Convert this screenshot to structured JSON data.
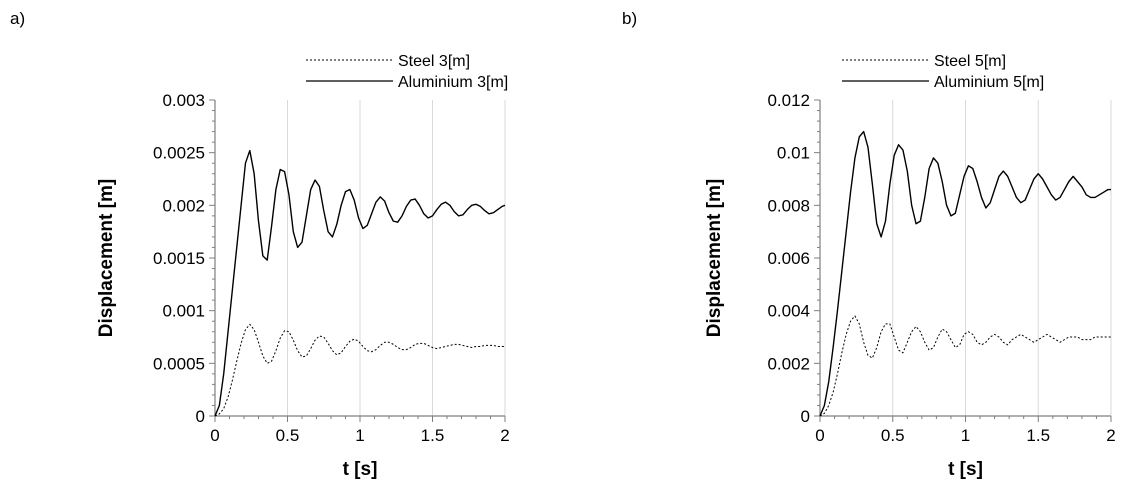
{
  "chart_data": [
    {
      "type": "line",
      "panel_label": "a)",
      "xlabel": "t [s]",
      "ylabel": "Displacement [m]",
      "xlim": [
        0,
        2
      ],
      "ylim": [
        0,
        0.003
      ],
      "xticks": [
        0,
        0.5,
        1,
        1.5,
        2
      ],
      "xtick_labels": [
        "0",
        "0.5",
        "1",
        "1.5",
        "2"
      ],
      "yticks": [
        0,
        0.0005,
        0.001,
        0.0015,
        0.002,
        0.0025,
        0.003
      ],
      "ytick_labels": [
        "0",
        "0.0005",
        "0.001",
        "0.0015",
        "0.002",
        "0.0025",
        "0.003"
      ],
      "grid": "vertical",
      "legend_position": "top-right",
      "series": [
        {
          "name": "Steel 3[m]",
          "style": "dotted",
          "x": [
            0,
            0.03,
            0.06,
            0.09,
            0.12,
            0.15,
            0.18,
            0.21,
            0.24,
            0.27,
            0.3,
            0.33,
            0.36,
            0.39,
            0.42,
            0.45,
            0.48,
            0.51,
            0.54,
            0.57,
            0.6,
            0.63,
            0.66,
            0.69,
            0.72,
            0.75,
            0.78,
            0.81,
            0.84,
            0.87,
            0.9,
            0.93,
            0.96,
            0.99,
            1.02,
            1.05,
            1.08,
            1.11,
            1.14,
            1.17,
            1.2,
            1.23,
            1.26,
            1.29,
            1.32,
            1.35,
            1.38,
            1.41,
            1.44,
            1.47,
            1.5,
            1.53,
            1.56,
            1.59,
            1.62,
            1.65,
            1.68,
            1.71,
            1.74,
            1.77,
            1.8,
            1.83,
            1.86,
            1.89,
            1.92,
            1.95,
            1.98,
            2.0
          ],
          "y": [
            0,
            2e-05,
            7e-05,
            0.00018,
            0.00034,
            0.00052,
            0.00069,
            0.00082,
            0.00087,
            0.00082,
            0.0007,
            0.00057,
            0.0005,
            0.00052,
            0.00062,
            0.00074,
            0.00081,
            0.0008,
            0.00072,
            0.00062,
            0.00056,
            0.00057,
            0.00064,
            0.00072,
            0.00076,
            0.00075,
            0.00069,
            0.00062,
            0.00058,
            0.0006,
            0.00066,
            0.00071,
            0.00073,
            0.00071,
            0.00066,
            0.00062,
            0.00061,
            0.00063,
            0.00067,
            0.0007,
            0.0007,
            0.00068,
            0.00065,
            0.00063,
            0.00063,
            0.00065,
            0.00068,
            0.00069,
            0.00069,
            0.00067,
            0.00065,
            0.00064,
            0.00065,
            0.00066,
            0.00067,
            0.00068,
            0.00068,
            0.00067,
            0.00066,
            0.00065,
            0.00066,
            0.00066,
            0.00067,
            0.00067,
            0.00067,
            0.00066,
            0.00066,
            0.00066
          ]
        },
        {
          "name": "Aluminium 3[m]",
          "style": "solid",
          "x": [
            0,
            0.03,
            0.06,
            0.09,
            0.12,
            0.15,
            0.18,
            0.21,
            0.24,
            0.27,
            0.3,
            0.33,
            0.36,
            0.39,
            0.42,
            0.45,
            0.48,
            0.51,
            0.54,
            0.57,
            0.6,
            0.63,
            0.66,
            0.69,
            0.72,
            0.75,
            0.78,
            0.81,
            0.84,
            0.87,
            0.9,
            0.93,
            0.96,
            0.99,
            1.02,
            1.05,
            1.08,
            1.11,
            1.14,
            1.17,
            1.2,
            1.23,
            1.26,
            1.29,
            1.32,
            1.35,
            1.38,
            1.41,
            1.44,
            1.47,
            1.5,
            1.53,
            1.56,
            1.59,
            1.62,
            1.65,
            1.68,
            1.71,
            1.74,
            1.77,
            1.8,
            1.83,
            1.86,
            1.89,
            1.92,
            1.95,
            1.98,
            2.0
          ],
          "y": [
            0,
            0.0001,
            0.0004,
            0.0008,
            0.0012,
            0.0016,
            0.002,
            0.0024,
            0.00252,
            0.0023,
            0.00185,
            0.00152,
            0.00148,
            0.0018,
            0.00215,
            0.00234,
            0.00232,
            0.0021,
            0.00175,
            0.0016,
            0.00165,
            0.0019,
            0.00215,
            0.00224,
            0.00218,
            0.00195,
            0.00175,
            0.0017,
            0.00182,
            0.002,
            0.00213,
            0.00215,
            0.00205,
            0.00188,
            0.00178,
            0.00181,
            0.00192,
            0.00203,
            0.00208,
            0.00204,
            0.00193,
            0.00185,
            0.00184,
            0.0019,
            0.00199,
            0.00205,
            0.00206,
            0.002,
            0.00192,
            0.00188,
            0.0019,
            0.00196,
            0.00201,
            0.00203,
            0.002,
            0.00194,
            0.0019,
            0.00191,
            0.00196,
            0.002,
            0.00201,
            0.00199,
            0.00195,
            0.00192,
            0.00193,
            0.00196,
            0.00199,
            0.002
          ]
        }
      ]
    },
    {
      "type": "line",
      "panel_label": "b)",
      "xlabel": "t [s]",
      "ylabel": "Displacement [m]",
      "xlim": [
        0,
        2
      ],
      "ylim": [
        0,
        0.012
      ],
      "xticks": [
        0,
        0.5,
        1,
        1.5,
        2
      ],
      "xtick_labels": [
        "0",
        "0.5",
        "1",
        "1.5",
        "2"
      ],
      "yticks": [
        0,
        0.002,
        0.004,
        0.006,
        0.008,
        0.01,
        0.012
      ],
      "ytick_labels": [
        "0",
        "0.002",
        "0.004",
        "0.006",
        "0.008",
        "0.01",
        "0.012"
      ],
      "grid": "vertical",
      "legend_position": "top-right",
      "series": [
        {
          "name": "Steel 5[m]",
          "style": "dotted",
          "x": [
            0,
            0.03,
            0.06,
            0.09,
            0.12,
            0.15,
            0.18,
            0.21,
            0.24,
            0.27,
            0.3,
            0.33,
            0.36,
            0.39,
            0.42,
            0.45,
            0.48,
            0.51,
            0.54,
            0.57,
            0.6,
            0.63,
            0.66,
            0.69,
            0.72,
            0.75,
            0.78,
            0.81,
            0.84,
            0.87,
            0.9,
            0.93,
            0.96,
            0.99,
            1.02,
            1.05,
            1.08,
            1.11,
            1.14,
            1.17,
            1.2,
            1.23,
            1.26,
            1.29,
            1.32,
            1.35,
            1.38,
            1.41,
            1.44,
            1.47,
            1.5,
            1.53,
            1.56,
            1.59,
            1.62,
            1.65,
            1.68,
            1.71,
            1.74,
            1.77,
            1.8,
            1.83,
            1.86,
            1.89,
            1.92,
            1.95,
            1.98,
            2.0
          ],
          "y": [
            0,
            0.0001,
            0.0004,
            0.0009,
            0.0016,
            0.0024,
            0.0031,
            0.0036,
            0.0038,
            0.0035,
            0.0028,
            0.0023,
            0.0022,
            0.0026,
            0.0032,
            0.0035,
            0.0035,
            0.003,
            0.0025,
            0.0024,
            0.0028,
            0.0032,
            0.0034,
            0.0032,
            0.0028,
            0.0025,
            0.0026,
            0.003,
            0.0033,
            0.0032,
            0.0029,
            0.0026,
            0.0027,
            0.0031,
            0.0032,
            0.0031,
            0.0028,
            0.0027,
            0.0028,
            0.003,
            0.0031,
            0.003,
            0.0028,
            0.0027,
            0.0029,
            0.003,
            0.0031,
            0.003,
            0.0029,
            0.0028,
            0.0029,
            0.003,
            0.0031,
            0.003,
            0.0029,
            0.0028,
            0.0029,
            0.003,
            0.003,
            0.003,
            0.0029,
            0.0029,
            0.0029,
            0.003,
            0.003,
            0.003,
            0.003,
            0.003
          ]
        },
        {
          "name": "Aluminium 5[m]",
          "style": "solid",
          "x": [
            0,
            0.03,
            0.06,
            0.09,
            0.12,
            0.15,
            0.18,
            0.21,
            0.24,
            0.27,
            0.3,
            0.33,
            0.36,
            0.39,
            0.42,
            0.45,
            0.48,
            0.51,
            0.54,
            0.57,
            0.6,
            0.63,
            0.66,
            0.69,
            0.72,
            0.75,
            0.78,
            0.81,
            0.84,
            0.87,
            0.9,
            0.93,
            0.96,
            0.99,
            1.02,
            1.05,
            1.08,
            1.11,
            1.14,
            1.17,
            1.2,
            1.23,
            1.26,
            1.29,
            1.32,
            1.35,
            1.38,
            1.41,
            1.44,
            1.47,
            1.5,
            1.53,
            1.56,
            1.59,
            1.62,
            1.65,
            1.68,
            1.71,
            1.74,
            1.77,
            1.8,
            1.83,
            1.86,
            1.89,
            1.92,
            1.95,
            1.98,
            2.0
          ],
          "y": [
            0,
            0.0004,
            0.0013,
            0.0026,
            0.004,
            0.0055,
            0.007,
            0.0085,
            0.0098,
            0.0106,
            0.0108,
            0.0102,
            0.0088,
            0.0073,
            0.0068,
            0.0074,
            0.0088,
            0.0099,
            0.0103,
            0.0101,
            0.0093,
            0.008,
            0.0073,
            0.0074,
            0.0083,
            0.0094,
            0.0098,
            0.0096,
            0.0089,
            0.008,
            0.0076,
            0.0077,
            0.0084,
            0.0091,
            0.0095,
            0.0094,
            0.0089,
            0.0083,
            0.0079,
            0.0081,
            0.0086,
            0.0091,
            0.0093,
            0.0091,
            0.0087,
            0.0083,
            0.0081,
            0.0082,
            0.0086,
            0.009,
            0.0092,
            0.009,
            0.0087,
            0.0084,
            0.0082,
            0.0083,
            0.0086,
            0.0089,
            0.0091,
            0.0089,
            0.0087,
            0.0084,
            0.0083,
            0.0083,
            0.0084,
            0.0085,
            0.0086,
            0.0086
          ]
        }
      ]
    }
  ]
}
